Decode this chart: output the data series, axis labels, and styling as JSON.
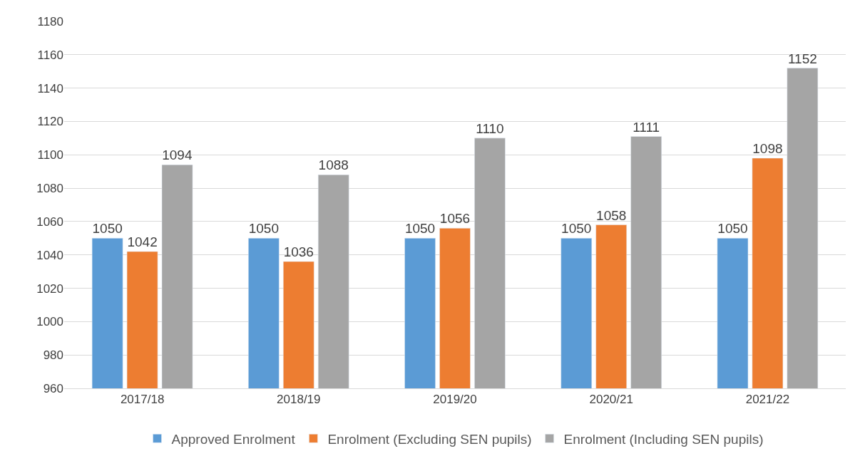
{
  "chart_data": {
    "type": "bar",
    "categories": [
      "2017/18",
      "2018/19",
      "2019/20",
      "2020/21",
      "2021/22"
    ],
    "series": [
      {
        "name": "Approved Enrolment",
        "color": "#5b9bd5",
        "values": [
          1050,
          1050,
          1050,
          1050,
          1050
        ]
      },
      {
        "name": "Enrolment (Excluding SEN pupils)",
        "color": "#ed7d31",
        "values": [
          1042,
          1036,
          1056,
          1058,
          1098
        ]
      },
      {
        "name": "Enrolment (Including SEN pupils)",
        "color": "#a5a5a5",
        "values": [
          1094,
          1088,
          1110,
          1111,
          1152
        ]
      }
    ],
    "ylim": [
      960,
      1180
    ],
    "yticks": [
      960,
      980,
      1000,
      1020,
      1040,
      1060,
      1080,
      1100,
      1120,
      1140,
      1160,
      1180
    ],
    "grid": "y",
    "legend": "bottom",
    "data_labels": true
  }
}
